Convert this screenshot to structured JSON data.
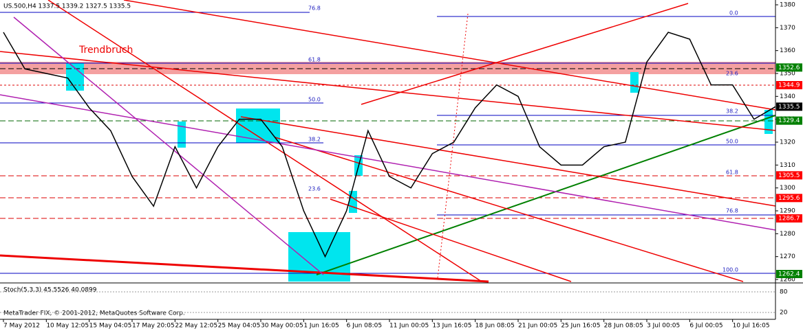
{
  "chart_data": {
    "type": "line",
    "title": "US.500,H4 1337.5 1339.2 1327.5 1335.5",
    "annotation": "Trendbruch",
    "fib_labels": [
      "76.8",
      "61.8",
      "50.0",
      "38.2",
      "23.6",
      "0.0",
      "23.6",
      "38.2",
      "50.0",
      "61.8",
      "76.8",
      "100.0"
    ],
    "indicator_label": "Stoch(5,3,3) 45.5526 40.0899",
    "indicator_ticks": [
      80,
      20
    ],
    "footer": "MetaTrader FIX, © 2001-2012, MetaQuotes Software Corp.",
    "categories": [
      "7 May 2012",
      null,
      "10 May 12:05",
      null,
      "15 May 04:05",
      null,
      "17 May 20:05",
      null,
      "22 May 12:05",
      null,
      "25 May 04:05",
      null,
      "30 May 00:05",
      null,
      "1 Jun 16:05",
      null,
      "6 Jun 08:05",
      null,
      "11 Jun 00:05",
      null,
      "13 Jun 16:05",
      null,
      "18 Jun 08:05",
      null,
      "21 Jun 00:05",
      null,
      "25 Jun 16:05",
      null,
      "28 Jun 08:05",
      null,
      "3 Jul 00:05",
      null,
      "6 Jul 00:05",
      null,
      "10 Jul 16:05",
      null,
      null
    ],
    "series": [
      {
        "name": "US.500",
        "color": "#000000",
        "values": [
          1368,
          1352,
          1350,
          1348,
          1335,
          1325,
          1305,
          1292,
          1318,
          1300,
          1318,
          1330,
          1330,
          1318,
          1290,
          1270,
          1290,
          1325,
          1305,
          1300,
          1315,
          1320,
          1335,
          1345,
          1340,
          1318,
          1310,
          1310,
          1318,
          1320,
          1355,
          1368,
          1365,
          1345,
          1345,
          1330,
          1335.5
        ]
      }
    ],
    "price_tags": [
      {
        "value": 1352.6,
        "color": "#008000"
      },
      {
        "value": 1344.9,
        "color": "#ff0000"
      },
      {
        "value": 1335.5,
        "color": "#000000"
      },
      {
        "value": 1329.4,
        "color": "#008000"
      },
      {
        "value": 1305.5,
        "color": "#ff0000"
      },
      {
        "value": 1295.6,
        "color": "#ff0000"
      },
      {
        "value": 1286.7,
        "color": "#ff0000"
      },
      {
        "value": 1262.4,
        "color": "#008000"
      }
    ],
    "ylim": [
      1258.5,
      1382.1
    ],
    "yticks": [
      1260,
      1270,
      1280,
      1290,
      1300,
      1310,
      1320,
      1330,
      1340,
      1350,
      1360,
      1370,
      1380
    ]
  }
}
